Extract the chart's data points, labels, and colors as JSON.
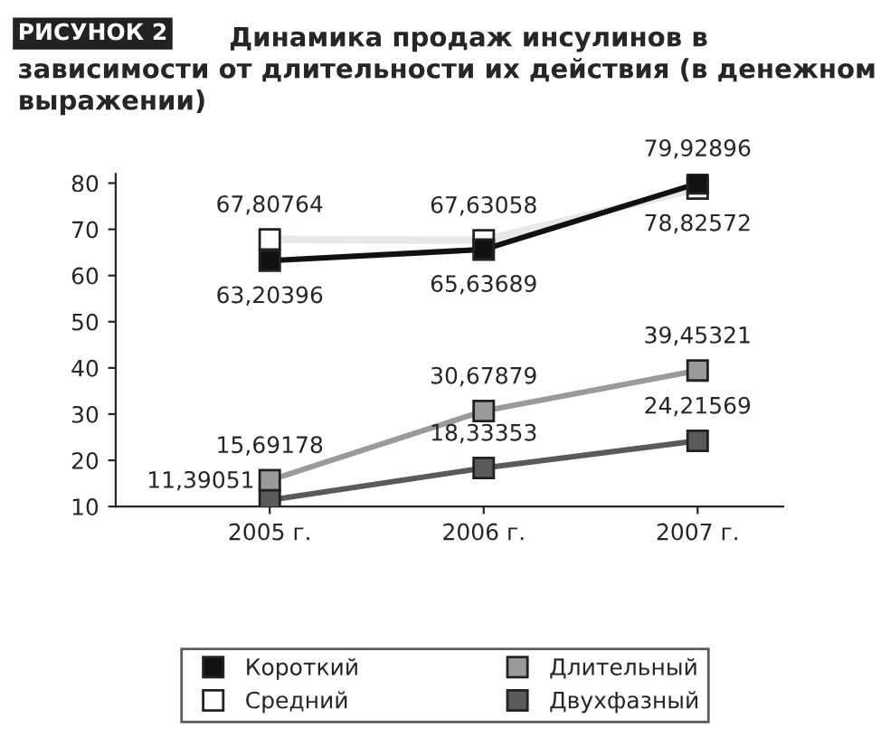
{
  "chart_data": {
    "type": "line",
    "title": "Динамика продаж инсулинов в зависимости от длительности их действия (в денежном выражении)",
    "annotations": [
      "РИСУНОК 2"
    ],
    "categories": [
      "2005 г.",
      "2006 г.",
      "2007 г."
    ],
    "series": [
      {
        "name": "Короткий",
        "color": "#111111",
        "values": [
          63.20396,
          65.63689,
          79.92896
        ],
        "value_labels": [
          "63,20396",
          "65,63689",
          "79,92896"
        ]
      },
      {
        "name": "Средний",
        "color": "#ffffff",
        "values": [
          67.80764,
          67.63058,
          78.82572
        ],
        "value_labels": [
          "67,80764",
          "67,63058",
          "78,82572"
        ]
      },
      {
        "name": "Длительный",
        "color": "#9a9a9a",
        "values": [
          15.69178,
          30.67879,
          39.45321
        ],
        "value_labels": [
          "15,69178",
          "30,67879",
          "39,45321"
        ]
      },
      {
        "name": "Двухфазный",
        "color": "#5a5a5a",
        "values": [
          11.39051,
          18.33353,
          24.21569
        ],
        "value_labels": [
          "11,39051",
          "18,33353",
          "24,21569"
        ]
      }
    ],
    "ylim": [
      10,
      82
    ],
    "yticks": [
      10,
      20,
      30,
      40,
      50,
      60,
      70,
      80
    ],
    "marker": "square",
    "line_style": "solid",
    "grid": false,
    "legend": "bottom"
  }
}
